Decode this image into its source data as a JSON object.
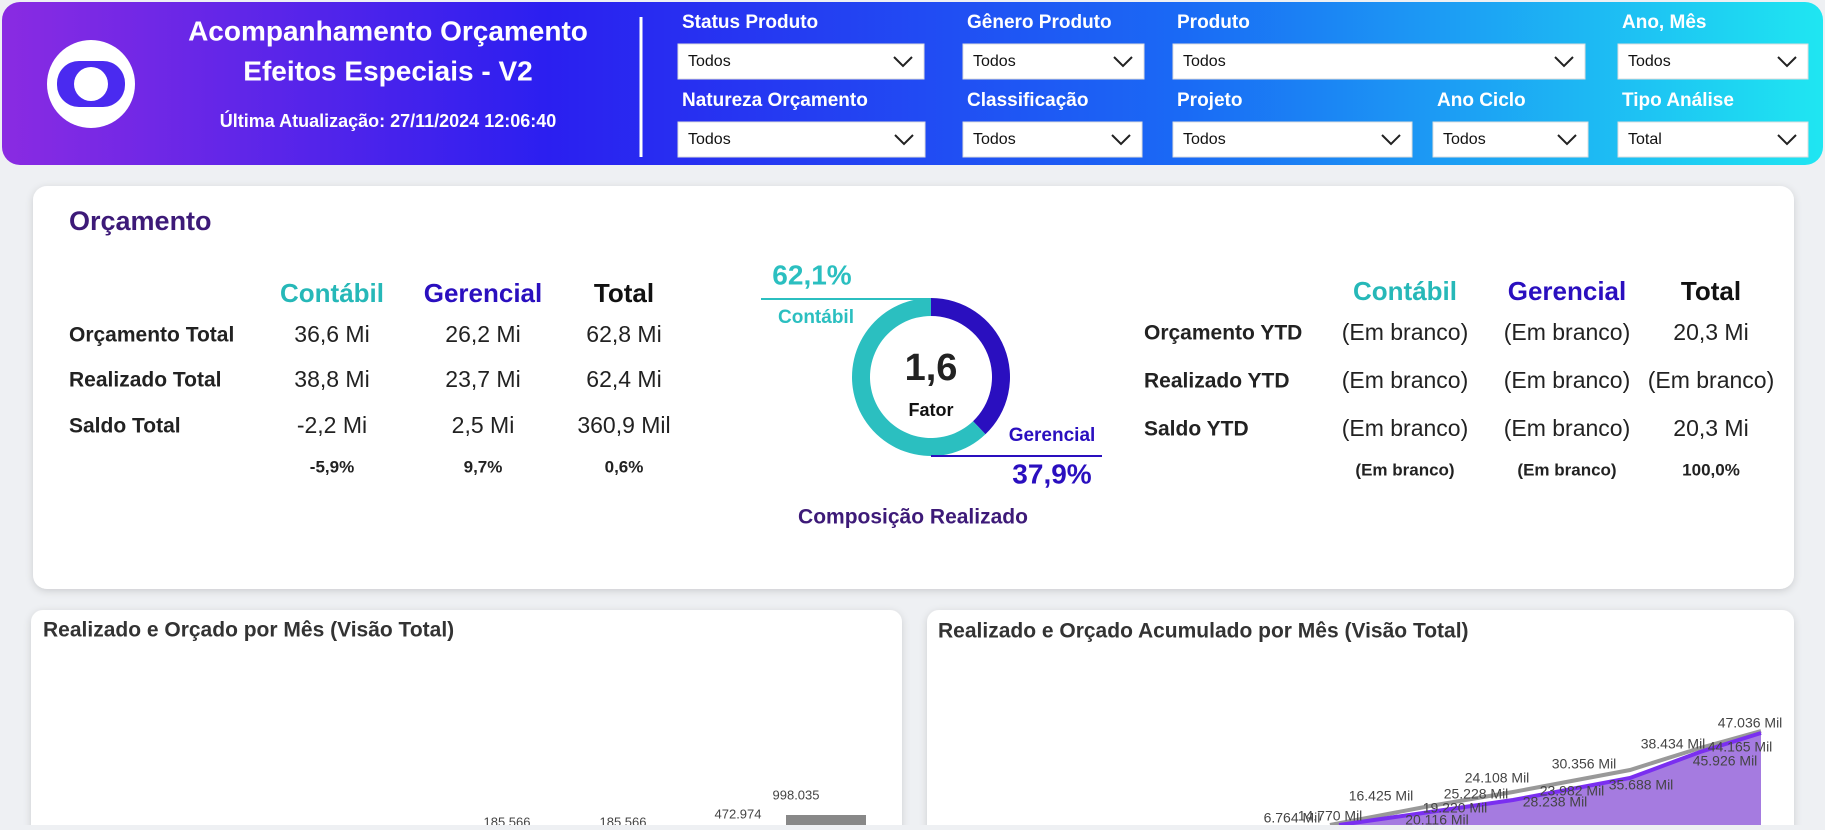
{
  "header": {
    "title_line1": "Acompanhamento Orçamento",
    "title_line2": "Efeitos Especiais - V2",
    "last_update": "Última Atualização: 27/11/2024 12:06:40"
  },
  "filters": [
    {
      "label": "Status Produto",
      "value": "Todos"
    },
    {
      "label": "Gênero Produto",
      "value": "Todos"
    },
    {
      "label": "Produto",
      "value": "Todos"
    },
    {
      "label": "Ano, Mês",
      "value": "Todos"
    },
    {
      "label": "Natureza Orçamento",
      "value": "Todos"
    },
    {
      "label": "Classificação",
      "value": "Todos"
    },
    {
      "label": "Projeto",
      "value": "Todos"
    },
    {
      "label": "Ano Ciclo",
      "value": "Todos"
    },
    {
      "label": "Tipo Análise",
      "value": "Total"
    }
  ],
  "budget_card": {
    "title": "Orçamento",
    "left_table": {
      "columns": [
        "Contábil",
        "Gerencial",
        "Total"
      ],
      "rows": [
        {
          "label": "Orçamento Total",
          "cells": [
            "36,6 Mi",
            "26,2 Mi",
            "62,8 Mi"
          ]
        },
        {
          "label": "Realizado Total",
          "cells": [
            "38,8 Mi",
            "23,7 Mi",
            "62,4 Mi"
          ]
        },
        {
          "label": "Saldo Total",
          "cells": [
            "-2,2 Mi",
            "2,5 Mi",
            "360,9 Mil"
          ]
        }
      ],
      "percent_row": [
        "-5,9%",
        "9,7%",
        "0,6%"
      ]
    },
    "right_table": {
      "columns": [
        "Contábil",
        "Gerencial",
        "Total"
      ],
      "rows": [
        {
          "label": "Orçamento YTD",
          "cells": [
            "(Em branco)",
            "(Em branco)",
            "20,3 Mi"
          ]
        },
        {
          "label": "Realizado YTD",
          "cells": [
            "(Em branco)",
            "(Em branco)",
            "(Em branco)"
          ]
        },
        {
          "label": "Saldo YTD",
          "cells": [
            "(Em branco)",
            "(Em branco)",
            "20,3 Mi"
          ]
        }
      ],
      "percent_row": [
        "(Em branco)",
        "(Em branco)",
        "100,0%"
      ]
    },
    "donut": {
      "title": "Composição Realizado",
      "center_value": "1,6",
      "center_label": "Fator",
      "segments": [
        {
          "name": "Contábil",
          "value": 62.1,
          "label": "62,1%",
          "color": "#2bbfc0"
        },
        {
          "name": "Gerencial",
          "value": 37.9,
          "label": "37,9%",
          "color": "#2a0fbf"
        }
      ]
    }
  },
  "charts": [
    {
      "title": "Realizado e Orçado por Mês (Visão Total)",
      "labels": [
        "998.035",
        "472.974",
        "185.566",
        "185.566"
      ]
    },
    {
      "title": "Realizado e Orçado Acumulado por Mês (Visão Total)",
      "labels": [
        "47.036 Mil",
        "44.165 Mil",
        "45.926 Mil",
        "38.434 Mil",
        "35.688 Mil",
        "30.356 Mil",
        "28.238 Mil",
        "23.982 Mil",
        "24.108 Mil",
        "25.228 Mil",
        "19.220 Mil",
        "20.116 Mil",
        "16.425 Mil",
        "14.770 Mil",
        "6.764 Mil"
      ]
    }
  ]
}
